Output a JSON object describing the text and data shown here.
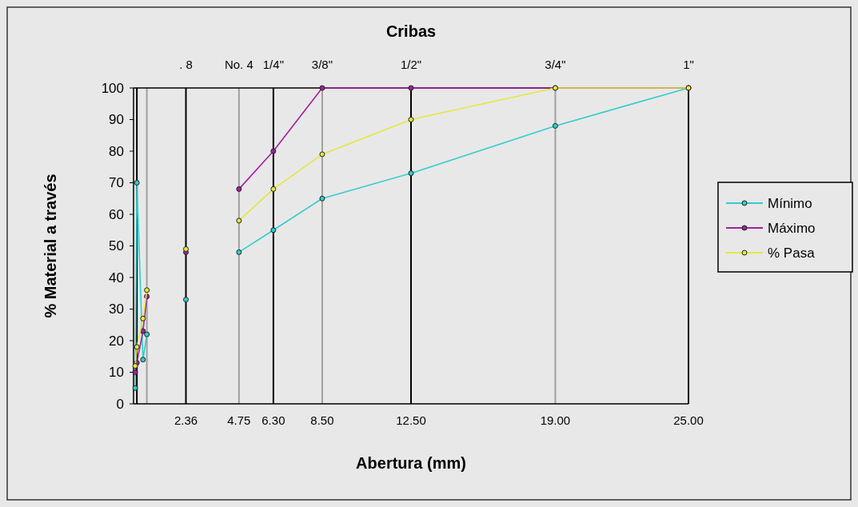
{
  "chart_data": {
    "type": "line",
    "title": "Cribas",
    "xlabel": "Abertura (mm)",
    "ylabel": "% Material a través",
    "xlim": [
      0,
      25
    ],
    "xticks": [
      {
        "value": 2.36,
        "label": "2.36"
      },
      {
        "value": 4.75,
        "label": "4.75"
      },
      {
        "value": 6.3,
        "label": "6.30"
      },
      {
        "value": 8.5,
        "label": "8.50"
      },
      {
        "value": 12.5,
        "label": "12.50"
      },
      {
        "value": 19,
        "label": "19.00"
      },
      {
        "value": 25,
        "label": "25.00"
      }
    ],
    "ylim": [
      0,
      100
    ],
    "yticks": [
      0,
      10,
      20,
      30,
      40,
      50,
      60,
      70,
      80,
      90,
      100
    ],
    "ref_lines": [
      {
        "axis": "x",
        "value": 0.15,
        "color": "#000000"
      },
      {
        "axis": "x",
        "value": 0.6,
        "color": "#a0a0a0"
      },
      {
        "axis": "x",
        "value": 2.36,
        "color": "#000000"
      },
      {
        "axis": "x",
        "value": 4.75,
        "color": "#a0a0a0"
      },
      {
        "axis": "x",
        "value": 6.3,
        "color": "#000000"
      },
      {
        "axis": "x",
        "value": 8.5,
        "color": "#a0a0a0"
      },
      {
        "axis": "x",
        "value": 12.5,
        "color": "#000000"
      },
      {
        "axis": "x",
        "value": 19,
        "color": "#a0a0a0"
      }
    ],
    "annotations": [
      ". 8",
      "No. 4",
      "1/4\"",
      "3/8\"",
      "1/2\"",
      "3/4\"",
      "1\""
    ],
    "series": [
      {
        "name": "Mínimo",
        "color": "#33cccc",
        "x": [
          0.075,
          0.15,
          0.425,
          0.6,
          1.5,
          2.36,
          3.5,
          4.75,
          6.3,
          8.5,
          12.5,
          19,
          25
        ],
        "values": [
          5,
          70,
          14,
          22,
          null,
          33,
          null,
          48,
          55,
          65,
          73,
          88,
          100
        ]
      },
      {
        "name": "Máximo",
        "color": "#a020a0",
        "x": [
          0.075,
          0.15,
          0.425,
          0.6,
          1.5,
          2.36,
          3.5,
          4.75,
          6.3,
          8.5,
          12.5,
          19,
          25
        ],
        "values": [
          10,
          13,
          23,
          34,
          null,
          48,
          null,
          68,
          80,
          100,
          100,
          100,
          100
        ]
      },
      {
        "name": "% Pasa",
        "color": "#e6e640",
        "x": [
          0.075,
          0.15,
          0.425,
          0.6,
          1.5,
          2.36,
          3.5,
          4.75,
          6.3,
          8.5,
          12.5,
          19,
          25
        ],
        "values": [
          12,
          18,
          27,
          36,
          null,
          49,
          null,
          58,
          68,
          79,
          90,
          100,
          100
        ]
      }
    ],
    "marker": "circle",
    "line_style": "solid",
    "legend": "right"
  }
}
